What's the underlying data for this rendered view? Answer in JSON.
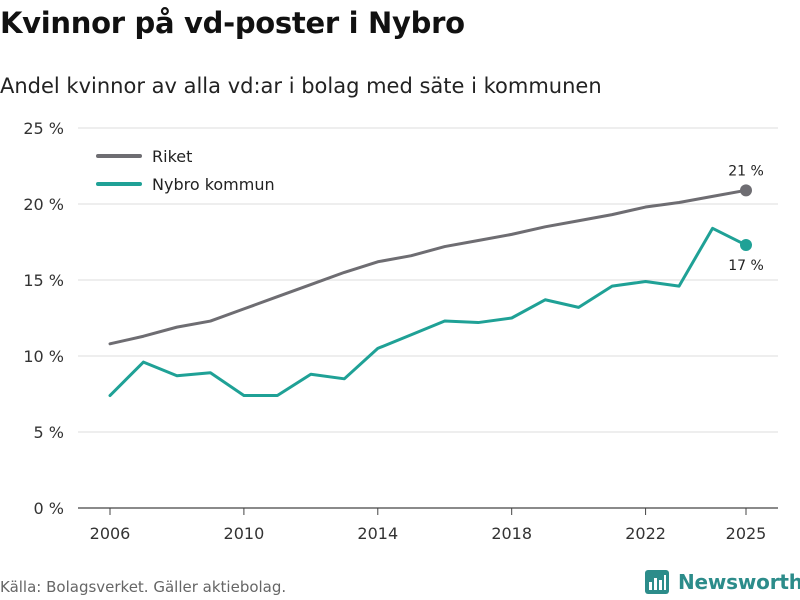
{
  "header": {
    "title": "Kvinnor på vd-poster i Nybro",
    "subtitle": "Andel kvinnor av alla vd:ar i bolag med säte i kommunen"
  },
  "footer": {
    "source": "Källa: Bolagsverket. Gäller aktiebolag.",
    "brand": "Newsworthy",
    "brand_icon": "newsworthy-logo-icon"
  },
  "chart_data": {
    "type": "line",
    "title": "Kvinnor på vd-poster i Nybro",
    "subtitle": "Andel kvinnor av alla vd:ar i bolag med säte i kommunen",
    "xlabel": "",
    "ylabel": "",
    "x": [
      2006,
      2007,
      2008,
      2009,
      2010,
      2011,
      2012,
      2013,
      2014,
      2015,
      2016,
      2017,
      2018,
      2019,
      2020,
      2021,
      2022,
      2023,
      2024,
      2025
    ],
    "xticks": [
      2006,
      2010,
      2014,
      2018,
      2022,
      2025
    ],
    "xtick_labels": [
      "2006",
      "2010",
      "2014",
      "2018",
      "2022",
      "2025"
    ],
    "xlim": [
      2006,
      2025
    ],
    "ylim": [
      0,
      25
    ],
    "yticks": [
      0,
      5,
      10,
      15,
      20,
      25
    ],
    "ytick_labels": [
      "0 %",
      "5 %",
      "10 %",
      "15 %",
      "20 %",
      "25 %"
    ],
    "grid": true,
    "legend_position": "top-left",
    "series": [
      {
        "name": "Riket",
        "color": "#6e6d72",
        "values": [
          10.8,
          11.3,
          11.9,
          12.3,
          13.1,
          13.9,
          14.7,
          15.5,
          16.2,
          16.6,
          17.2,
          17.6,
          18.0,
          18.5,
          18.9,
          19.3,
          19.8,
          20.1,
          20.5,
          20.9
        ],
        "end_label": "21 %"
      },
      {
        "name": "Nybro kommun",
        "color": "#1fa196",
        "values": [
          7.4,
          9.6,
          8.7,
          8.9,
          7.4,
          7.4,
          8.8,
          8.5,
          10.5,
          11.4,
          12.3,
          12.2,
          12.5,
          13.7,
          13.2,
          14.6,
          14.9,
          14.6,
          18.4,
          17.3
        ],
        "end_label": "17 %"
      }
    ]
  }
}
